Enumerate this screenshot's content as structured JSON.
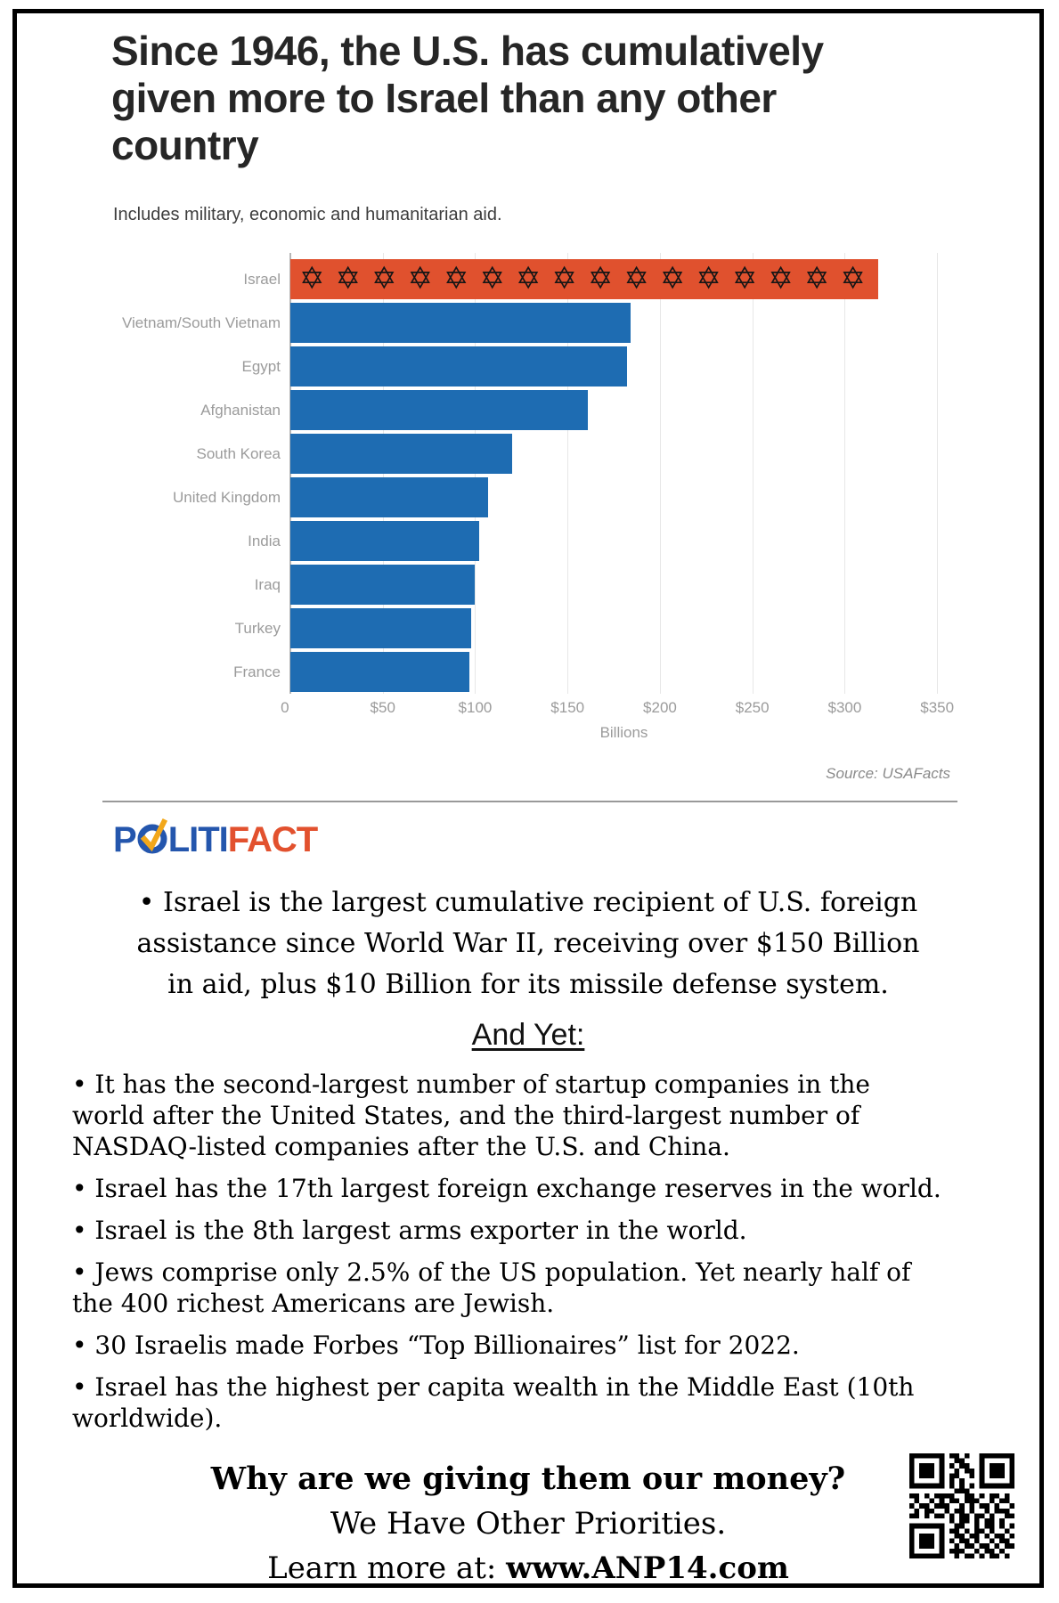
{
  "header": {
    "title": "Since 1946, the U.S. has cumulatively\ngiven more to Israel than any other\ncountry",
    "subtitle": "Includes military, economic and humanitarian aid."
  },
  "chart": {
    "subtitle": "Includes military, economic and humanitarian aid.",
    "source": "Source: USAFacts",
    "xlabel": "Billions",
    "xlim": [
      0,
      361
    ],
    "xticks": [
      0,
      50,
      100,
      150,
      200,
      250,
      300,
      350
    ],
    "xtick_labels": [
      "0",
      "$50",
      "$100",
      "$150",
      "$200",
      "$250",
      "$300",
      "$350"
    ],
    "categories": [
      "Israel",
      "Vietnam/South Vietnam",
      "Egypt",
      "Afghanistan",
      "South Korea",
      "United Kingdom",
      "India",
      "Iraq",
      "Turkey",
      "France"
    ],
    "values": [
      318,
      184,
      182,
      161,
      120,
      107,
      102,
      100,
      98,
      97
    ],
    "colors": {
      "bar_default": "#1e6cb2",
      "bar_israel": "#e0512e",
      "grid": "#e7e7e7",
      "axis": "#b6b6b6"
    },
    "israel_pattern": {
      "symbol": "✡",
      "count": 16
    }
  },
  "chart_data": {
    "type": "bar",
    "orientation": "horizontal",
    "title": "Since 1946, the U.S. has cumulatively given more to Israel than any other country",
    "subtitle": "Includes military, economic and humanitarian aid.",
    "categories": [
      "Israel",
      "Vietnam/South Vietnam",
      "Egypt",
      "Afghanistan",
      "South Korea",
      "United Kingdom",
      "India",
      "Iraq",
      "Turkey",
      "France"
    ],
    "values": [
      318,
      184,
      182,
      161,
      120,
      107,
      102,
      100,
      98,
      97
    ],
    "xlabel": "Billions",
    "ylabel": "",
    "xlim": [
      0,
      361
    ],
    "xticks": [
      "0",
      "$50",
      "$100",
      "$150",
      "$200",
      "$250",
      "$300",
      "$350"
    ],
    "grid": true,
    "legend": false,
    "source": "Source: USAFacts",
    "highlight": {
      "category": "Israel",
      "color": "#e0512e",
      "pattern": "star-of-david"
    }
  },
  "politifact": {
    "p": "P",
    "liti": "LITI",
    "fact": "FACT",
    "colors": {
      "blue": "#2456ad",
      "red": "#e2512e",
      "gold": "#f2a71a"
    }
  },
  "facts": {
    "lead": "• Israel is the largest cumulative recipient of U.S. foreign\nassistance since World War II, receiving over $150 Billion\nin aid, plus $10 Billion for its missile defense system.",
    "and_yet": "And Yet:",
    "bullets": [
      "• It has the second-largest number of startup companies in the world after the United States, and the third-largest number of NASDAQ-listed companies after the U.S. and China.",
      "• Israel has the 17th largest foreign exchange reserves in the world.",
      "• Israel is the 8th largest arms exporter in the world.",
      "• Jews comprise only 2.5% of the US population. Yet nearly half of the 400 richest Americans are Jewish.",
      "• 30 Israelis made Forbes “Top Billionaires” list for 2022.",
      "• Israel has the highest per capita wealth in the Middle East (10th worldwide)."
    ]
  },
  "footer": {
    "line1": "Why are we giving them our money?",
    "line2": "We Have Other Priorities.",
    "line3_prefix": "Learn more at: ",
    "line3_url": "www.ANP14.com"
  },
  "qr": {
    "matrix": [
      "111111101101001111111",
      "100000100110001000001",
      "101110101011001011101",
      "101110100101101011101",
      "101110101100101011101",
      "100000101010001000001",
      "111111101010101111111",
      "000000000111000000000",
      "110101111001101011010",
      "010010101101110010110",
      "101101110010101101001",
      "010110010110100101110",
      "110101101011011010011",
      "000000001011010110100",
      "111111100110010110101",
      "100000101101011010010",
      "101110100110110101101",
      "101110101011010010110",
      "101110100101101101011",
      "100000101110010110100",
      "111111100101101011010"
    ]
  }
}
